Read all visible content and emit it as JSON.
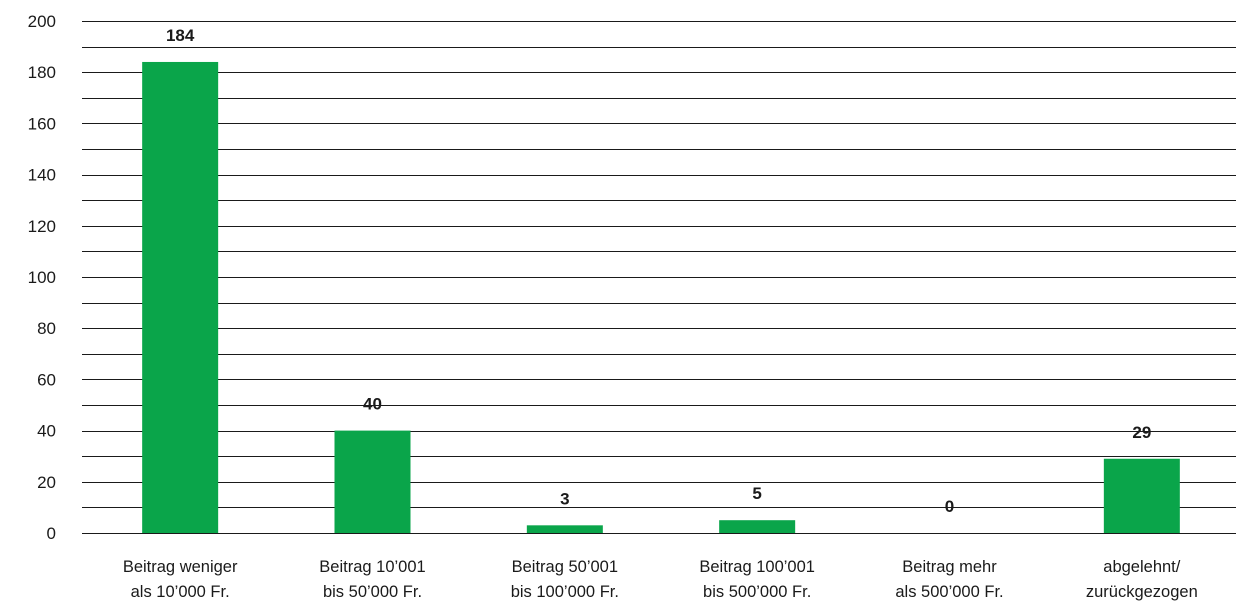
{
  "chart_data": {
    "type": "bar",
    "title": "",
    "xlabel": "",
    "ylabel": "",
    "ylim": [
      0,
      200
    ],
    "yticks": [
      0,
      20,
      40,
      60,
      80,
      100,
      120,
      140,
      160,
      180,
      200
    ],
    "minor_grid_step": 10,
    "grid": true,
    "bar_color": "#0aa54a",
    "categories": [
      [
        "Beitrag weniger",
        "als 10’000 Fr."
      ],
      [
        "Beitrag 10’001",
        "bis 50’000 Fr."
      ],
      [
        "Beitrag 50’001",
        "bis 100’000 Fr."
      ],
      [
        "Beitrag 100’001",
        "bis 500’000 Fr."
      ],
      [
        "Beitrag mehr",
        "als 500’000 Fr."
      ],
      [
        "abgelehnt/",
        "zurückgezogen"
      ]
    ],
    "values": [
      184,
      40,
      3,
      5,
      0,
      29
    ],
    "value_labels": [
      "184",
      "40",
      "3",
      "5",
      "0",
      "29"
    ]
  }
}
